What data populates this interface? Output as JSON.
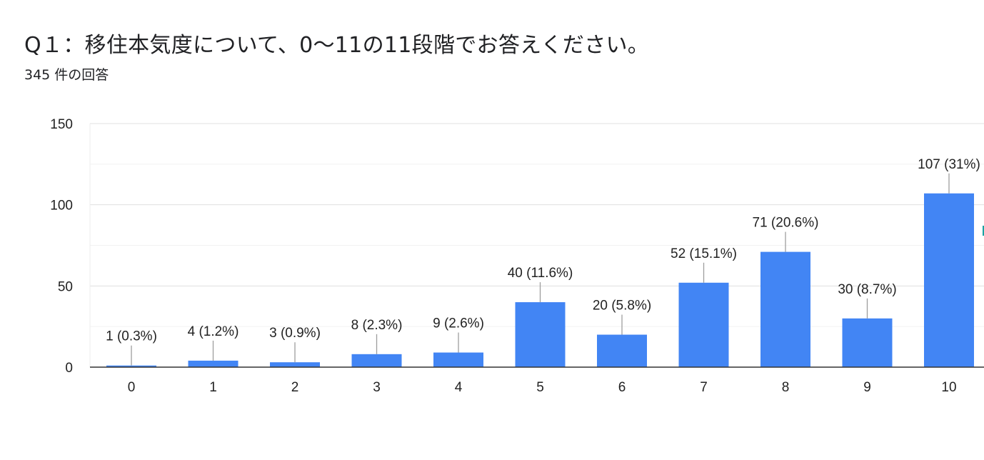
{
  "title": "Q１：移住本気度について、0〜11の11段階でお答えください。",
  "subtitle": "345 件の回答",
  "colors": {
    "bar": "#4285f4",
    "grid": "#e8e8e8",
    "axis": "#333333",
    "leader": "#9e9e9e"
  },
  "chart_data": {
    "type": "bar",
    "title": "",
    "xlabel": "",
    "ylabel": "",
    "categories": [
      "0",
      "1",
      "2",
      "3",
      "4",
      "5",
      "6",
      "7",
      "8",
      "9",
      "10"
    ],
    "values": [
      1,
      4,
      3,
      8,
      9,
      40,
      20,
      52,
      71,
      30,
      107
    ],
    "data_labels": [
      "1 (0.3%)",
      "4 (1.2%)",
      "3 (0.9%)",
      "8 (2.3%)",
      "9 (2.6%)",
      "40 (11.6%)",
      "20 (5.8%)",
      "52 (15.1%)",
      "71 (20.6%)",
      "30 (8.7%)",
      "107 (31%)"
    ],
    "ylim": [
      0,
      150
    ],
    "yticks": [
      "0",
      "50",
      "100",
      "150"
    ],
    "grid": true,
    "legend": "none"
  }
}
